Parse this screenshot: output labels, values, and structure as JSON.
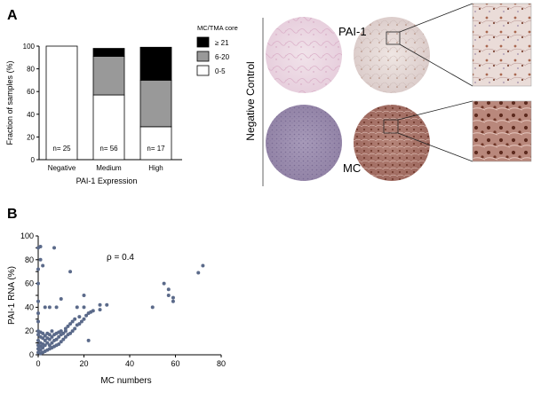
{
  "panels": [
    {
      "label": "A"
    },
    {
      "label": "B"
    }
  ],
  "micrograph": {
    "negative_label": "Negative Control",
    "pai_label": "PAI-1",
    "mc_label": "MC"
  },
  "chart_data": [
    {
      "type": "bar",
      "stacked": true,
      "categories": [
        "Negative",
        "Medium",
        "High"
      ],
      "series": [
        {
          "name": "0-5",
          "color": "#ffffff",
          "values": [
            100,
            57,
            29
          ]
        },
        {
          "name": "6-20",
          "color": "#999999",
          "values": [
            0,
            34,
            41
          ]
        },
        {
          "name": "≥ 21",
          "color": "#000000",
          "values": [
            0,
            7,
            29
          ]
        }
      ],
      "bar_labels": [
        "n= 25",
        "n= 56",
        "n= 17"
      ],
      "title": "",
      "xlabel": "PAI-1 Expression",
      "ylabel": "Fraction of samples (%)",
      "ylim": [
        0,
        100
      ],
      "yticks": [
        "0",
        "20",
        "40",
        "60",
        "80",
        "100"
      ],
      "legend_title": "MC/TMA core",
      "legend_position": "top-right"
    },
    {
      "type": "scatter",
      "title": "",
      "xlabel": "MC numbers",
      "ylabel": "PAI-1 RNA (%)",
      "xlim": [
        0,
        80
      ],
      "ylim": [
        0,
        100
      ],
      "xticks": [
        "0",
        "20",
        "40",
        "60",
        "80"
      ],
      "yticks": [
        "0",
        "10",
        "20",
        "30",
        "40",
        "50",
        "60",
        "70",
        "80",
        "90",
        "100"
      ],
      "annotation": "ρ = 0.4",
      "point_color": "#5b6a8a",
      "points": [
        [
          0,
          2
        ],
        [
          0,
          5
        ],
        [
          0,
          8
        ],
        [
          0,
          12
        ],
        [
          0,
          17
        ],
        [
          0,
          20
        ],
        [
          0,
          28
        ],
        [
          0,
          35
        ],
        [
          0,
          45
        ],
        [
          0,
          60
        ],
        [
          0,
          72
        ],
        [
          0,
          90
        ],
        [
          1,
          1
        ],
        [
          1,
          4
        ],
        [
          1,
          7
        ],
        [
          1,
          10
        ],
        [
          1,
          15
        ],
        [
          1,
          19
        ],
        [
          1,
          80
        ],
        [
          1,
          91
        ],
        [
          2,
          2
        ],
        [
          2,
          6
        ],
        [
          2,
          9
        ],
        [
          2,
          14
        ],
        [
          2,
          18
        ],
        [
          2,
          75
        ],
        [
          3,
          3
        ],
        [
          3,
          8
        ],
        [
          3,
          12
        ],
        [
          3,
          16
        ],
        [
          3,
          40
        ],
        [
          4,
          4
        ],
        [
          4,
          10
        ],
        [
          4,
          14
        ],
        [
          4,
          18
        ],
        [
          5,
          5
        ],
        [
          5,
          8
        ],
        [
          5,
          13
        ],
        [
          5,
          17
        ],
        [
          5,
          40
        ],
        [
          6,
          6
        ],
        [
          6,
          10
        ],
        [
          6,
          15
        ],
        [
          6,
          20
        ],
        [
          7,
          7
        ],
        [
          7,
          12
        ],
        [
          7,
          17
        ],
        [
          7,
          90
        ],
        [
          8,
          8
        ],
        [
          8,
          13
        ],
        [
          8,
          18
        ],
        [
          8,
          40
        ],
        [
          9,
          9
        ],
        [
          9,
          15
        ],
        [
          9,
          19
        ],
        [
          10,
          11
        ],
        [
          10,
          17
        ],
        [
          10,
          20
        ],
        [
          10,
          47
        ],
        [
          11,
          13
        ],
        [
          11,
          18
        ],
        [
          12,
          15
        ],
        [
          12,
          20
        ],
        [
          12,
          22
        ],
        [
          13,
          17
        ],
        [
          13,
          24
        ],
        [
          14,
          18
        ],
        [
          14,
          26
        ],
        [
          14,
          70
        ],
        [
          15,
          20
        ],
        [
          15,
          28
        ],
        [
          16,
          22
        ],
        [
          16,
          30
        ],
        [
          17,
          25
        ],
        [
          17,
          40
        ],
        [
          18,
          26
        ],
        [
          18,
          32
        ],
        [
          19,
          28
        ],
        [
          20,
          30
        ],
        [
          20,
          50
        ],
        [
          20,
          40
        ],
        [
          21,
          33
        ],
        [
          22,
          35
        ],
        [
          22,
          12
        ],
        [
          23,
          36
        ],
        [
          24,
          37
        ],
        [
          27,
          38
        ],
        [
          27,
          42
        ],
        [
          30,
          42
        ],
        [
          50,
          40
        ],
        [
          55,
          60
        ],
        [
          57,
          55
        ],
        [
          57,
          50
        ],
        [
          59,
          48
        ],
        [
          59,
          45
        ],
        [
          70,
          69
        ],
        [
          72,
          75
        ]
      ]
    }
  ]
}
